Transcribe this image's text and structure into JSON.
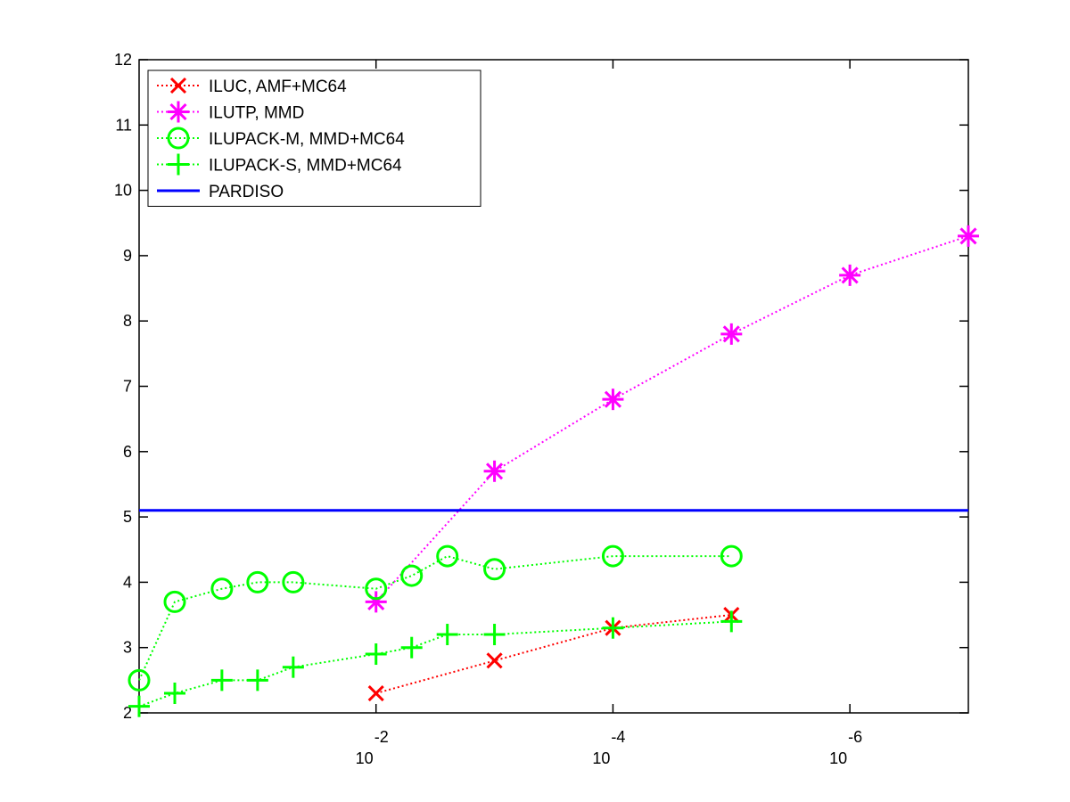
{
  "chart_data": {
    "type": "line",
    "title": "",
    "xlabel": "",
    "ylabel": "",
    "x_scale": "log-reversed",
    "xlim": [
      1,
      1e-07
    ],
    "ylim": [
      2,
      12
    ],
    "grid": false,
    "legend_position": "top-left",
    "y_ticks": [
      2,
      3,
      4,
      5,
      6,
      7,
      8,
      9,
      10,
      11,
      12
    ],
    "x_ticks": [
      {
        "value": 0.01,
        "base": "10",
        "exponent": "-2"
      },
      {
        "value": 0.0001,
        "base": "10",
        "exponent": "-4"
      },
      {
        "value": 1e-06,
        "base": "10",
        "exponent": "-6"
      }
    ],
    "series": [
      {
        "name": "ILUC, AMF+MC64",
        "color": "#ff0000",
        "marker": "x",
        "line": "dotted",
        "x": [
          0.01,
          0.001,
          0.0001,
          1e-05
        ],
        "y": [
          2.3,
          2.8,
          3.3,
          3.5
        ]
      },
      {
        "name": "ILUTP, MMD",
        "color": "#ff00ff",
        "marker": "star",
        "line": "dotted",
        "x": [
          0.01,
          0.001,
          0.0001,
          1e-05,
          1e-06,
          1e-07
        ],
        "y": [
          3.7,
          5.7,
          6.8,
          7.8,
          8.7,
          9.3
        ]
      },
      {
        "name": "ILUPACK-M, MMD+MC64",
        "color": "#00ff00",
        "marker": "circle",
        "line": "dotted",
        "x": [
          1,
          0.5,
          0.2,
          0.1,
          0.05,
          0.01,
          0.005,
          0.0025,
          0.001,
          0.0001,
          1e-05
        ],
        "y": [
          2.5,
          3.7,
          3.9,
          4.0,
          4.0,
          3.9,
          4.1,
          4.4,
          4.2,
          4.4,
          4.4
        ]
      },
      {
        "name": "ILUPACK-S, MMD+MC64",
        "color": "#00ff00",
        "marker": "plus",
        "line": "dotted",
        "x": [
          1,
          0.5,
          0.2,
          0.1,
          0.05,
          0.01,
          0.005,
          0.0025,
          0.001,
          0.0001,
          1e-05
        ],
        "y": [
          2.1,
          2.3,
          2.5,
          2.5,
          2.7,
          2.9,
          3.0,
          3.2,
          3.2,
          3.3,
          3.4
        ]
      },
      {
        "name": "PARDISO",
        "color": "#0000ff",
        "marker": "none",
        "line": "solid",
        "x": [
          1,
          1e-07
        ],
        "y": [
          5.1,
          5.1
        ]
      }
    ]
  }
}
